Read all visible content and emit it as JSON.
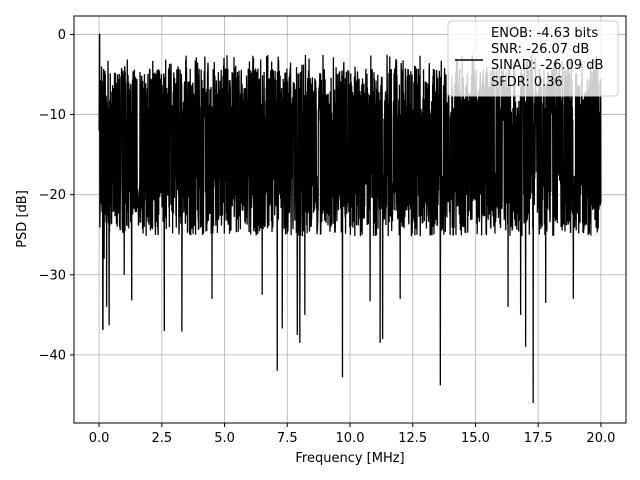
{
  "chart_data": {
    "type": "line",
    "title": "",
    "xlabel": "Frequency [MHz]",
    "ylabel": "PSD [dB]",
    "xlim": [
      -1.0,
      21.0
    ],
    "ylim": [
      -48.5,
      2.3
    ],
    "xticks": [
      0.0,
      2.5,
      5.0,
      7.5,
      10.0,
      12.5,
      15.0,
      17.5,
      20.0
    ],
    "xtick_labels": [
      "0.0",
      "2.5",
      "5.0",
      "7.5",
      "10.0",
      "12.5",
      "15.0",
      "17.5",
      "20.0"
    ],
    "yticks": [
      0,
      -10,
      -20,
      -30,
      -40
    ],
    "ytick_labels": [
      "0",
      "−10",
      "−20",
      "−30",
      "−40"
    ],
    "grid": true,
    "legend_position": "top-right",
    "legend_lines": [
      "ENOB: -4.63 bits",
      "SNR: -26.07 dB",
      "SINAD: -26.09 dB",
      "SFDR: 0.36"
    ],
    "series": [
      {
        "color": "#000000",
        "band_upper_typical": -7,
        "band_lower_typical": -22,
        "x": [
          0.0,
          0.02,
          0.05,
          0.1,
          0.15,
          0.2,
          0.3,
          0.4,
          0.6,
          1.0,
          1.3,
          2.0,
          2.6,
          3.3,
          4.5,
          5.0,
          6.5,
          7.1,
          7.3,
          7.9,
          8.0,
          8.2,
          9.7,
          10.8,
          11.2,
          11.3,
          12.0,
          13.6,
          16.3,
          16.8,
          17.0,
          17.3,
          17.8,
          18.9,
          20.0
        ],
        "y": [
          -12.0,
          0.0,
          -18.0,
          -4.0,
          -36.8,
          -28.0,
          -34.0,
          -36.3,
          -22.0,
          -30.0,
          -33.2,
          -22.5,
          -37.0,
          -37.1,
          -33.0,
          -22.0,
          -32.5,
          -42.0,
          -36.7,
          -37.5,
          -38.5,
          -35.0,
          -42.8,
          -33.3,
          -38.5,
          -38.0,
          -33.0,
          -43.8,
          -34.0,
          -35.0,
          -39.0,
          -46.0,
          -33.5,
          -33.0,
          -21.0
        ]
      }
    ]
  }
}
